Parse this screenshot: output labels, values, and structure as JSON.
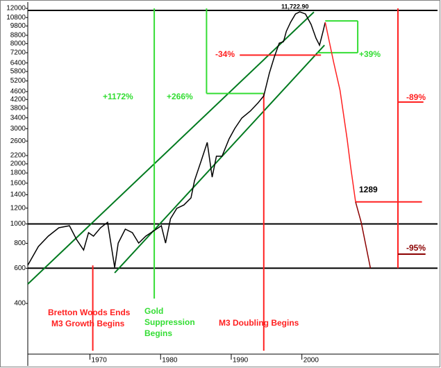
{
  "chart_data": {
    "type": "line",
    "log_y": true,
    "xlim": [
      1961.2,
      2019.2
    ],
    "ylim": [
      223,
      12700
    ],
    "xticks": [
      1970,
      1980,
      1990,
      2000
    ],
    "yticks": [
      400,
      600,
      800,
      1000,
      1200,
      1400,
      1600,
      1800,
      2000,
      2200,
      2600,
      3000,
      3400,
      3800,
      4200,
      4600,
      5200,
      5800,
      6400,
      7200,
      8000,
      8800,
      9800,
      10800,
      12000
    ],
    "series": [
      {
        "color": "#000000",
        "x": [
          1961.2,
          1962.7,
          1964.1,
          1965.6,
          1967.1,
          1968.1,
          1969.1,
          1969.8,
          1970.5,
          1971.5,
          1972.5,
          1973.5,
          1974.0,
          1975.0,
          1976.0,
          1976.9,
          1977.9,
          1979.4,
          1980.1,
          1980.7,
          1981.4,
          1982.3,
          1983.3,
          1984.3,
          1984.8,
          1985.8,
          1986.6,
          1987.3,
          1987.9,
          1988.7,
          1989.7,
          1990.5,
          1991.5,
          1992.7,
          1993.8,
          1994.6,
          1995.4,
          1996.1,
          1996.8,
          1997.4,
          1997.8,
          1998.4,
          1999.1,
          1999.7,
          2000.5,
          2001.3,
          2002.0,
          2002.5,
          2003.0,
          2003.3
        ],
        "values": [
          621,
          771,
          869,
          957,
          980,
          836,
          740,
          904,
          869,
          957,
          1019,
          606,
          802,
          942,
          904,
          802,
          869,
          942,
          980,
          802,
          1062,
          1197,
          1245,
          1350,
          1648,
          2096,
          2560,
          1715,
          2183,
          2183,
          2667,
          3006,
          3390,
          3673,
          4040,
          4377,
          5700,
          6855,
          8040,
          8170,
          9210,
          10220,
          11250,
          11530,
          11250,
          9980,
          8510,
          7850,
          9210,
          10220
        ]
      },
      {
        "color": "#ff2020",
        "x": [
          2003.3,
          2004.5,
          2005.4,
          2006.4,
          2006.9,
          2007.6
        ],
        "values": [
          10220,
          6430,
          4670,
          2667,
          1933,
          1289
        ]
      },
      {
        "color": "#8b0000",
        "x": [
          2007.6,
          2008.4,
          2009.7
        ],
        "values": [
          1289,
          1019,
          600
        ]
      }
    ],
    "reference_lines": [
      {
        "color": "#000000",
        "x": [
          1961.2,
          2019.2
        ],
        "y": [
          11722.9,
          11722.9
        ]
      },
      {
        "color": "#000000",
        "x": [
          1961.2,
          2019.2
        ],
        "y": [
          1000,
          1000
        ]
      },
      {
        "color": "#000000",
        "x": [
          1961.2,
          2019.2
        ],
        "y": [
          600,
          600
        ]
      },
      {
        "color": "#007a1f",
        "x": [
          1961.2,
          2001.7
        ],
        "y": [
          500,
          11500
        ]
      },
      {
        "color": "#007a1f",
        "x": [
          1973.5,
          2003.2
        ],
        "y": [
          569,
          7850
        ]
      },
      {
        "color": "#33dd33",
        "x": [
          1979.1,
          1979.1
        ],
        "y": [
          12000,
          423
        ]
      },
      {
        "color": "#33dd33",
        "x": [
          1986.5,
          1986.5
        ],
        "y": [
          12000,
          4500
        ]
      },
      {
        "color": "#33dd33",
        "x": [
          1986.5,
          1994.6
        ],
        "y": [
          4500,
          4500
        ]
      },
      {
        "color": "#ff2020",
        "x": [
          1994.6,
          1994.6
        ],
        "y": [
          4500,
          232
        ]
      },
      {
        "color": "#ff2020",
        "x": [
          1970.4,
          1970.4
        ],
        "y": [
          620,
          232
        ]
      },
      {
        "color": "#33dd33",
        "x": [
          2003.3,
          2007.9
        ],
        "y": [
          10390,
          10390
        ]
      },
      {
        "color": "#33dd33",
        "x": [
          2007.9,
          2007.9
        ],
        "y": [
          10390,
          7200
        ]
      },
      {
        "color": "#33dd33",
        "x": [
          2002.2,
          2007.9
        ],
        "y": [
          7200,
          7200
        ]
      },
      {
        "color": "#ff2020",
        "x": [
          1991.2,
          2002.7
        ],
        "y": [
          7000,
          7000
        ]
      },
      {
        "color": "#ff2020",
        "x": [
          2013.6,
          2013.6
        ],
        "y": [
          12000,
          600
        ]
      },
      {
        "color": "#ff2020",
        "x": [
          2013.6,
          2017.2
        ],
        "y": [
          4075,
          4075
        ]
      },
      {
        "color": "#ff2020",
        "x": [
          2007.6,
          2017.0
        ],
        "y": [
          1289,
          1289
        ]
      },
      {
        "color": "#8b0000",
        "x": [
          2013.6,
          2017.5
        ],
        "y": [
          706,
          706
        ]
      }
    ],
    "annotations": [
      {
        "text": "11,722.90",
        "color": "#000000"
      },
      {
        "text": "-34%",
        "color": "#ff2020"
      },
      {
        "text": "+39%",
        "color": "#33dd33"
      },
      {
        "text": "+1172%",
        "color": "#33dd33"
      },
      {
        "text": "+266%",
        "color": "#33dd33"
      },
      {
        "text": "-89%",
        "color": "#ff2020"
      },
      {
        "text": "1289",
        "color": "#000000"
      },
      {
        "text": "-95%",
        "color": "#8b0000"
      },
      {
        "text": "Bretton Woods Ends",
        "color": "#ff2020"
      },
      {
        "text": "M3 Growth Begins",
        "color": "#ff2020"
      },
      {
        "text": "Gold",
        "color": "#33dd33"
      },
      {
        "text": "Suppression",
        "color": "#33dd33"
      },
      {
        "text": "Begins",
        "color": "#33dd33"
      },
      {
        "text": "M3 Doubling Begins",
        "color": "#ff2020"
      }
    ]
  }
}
